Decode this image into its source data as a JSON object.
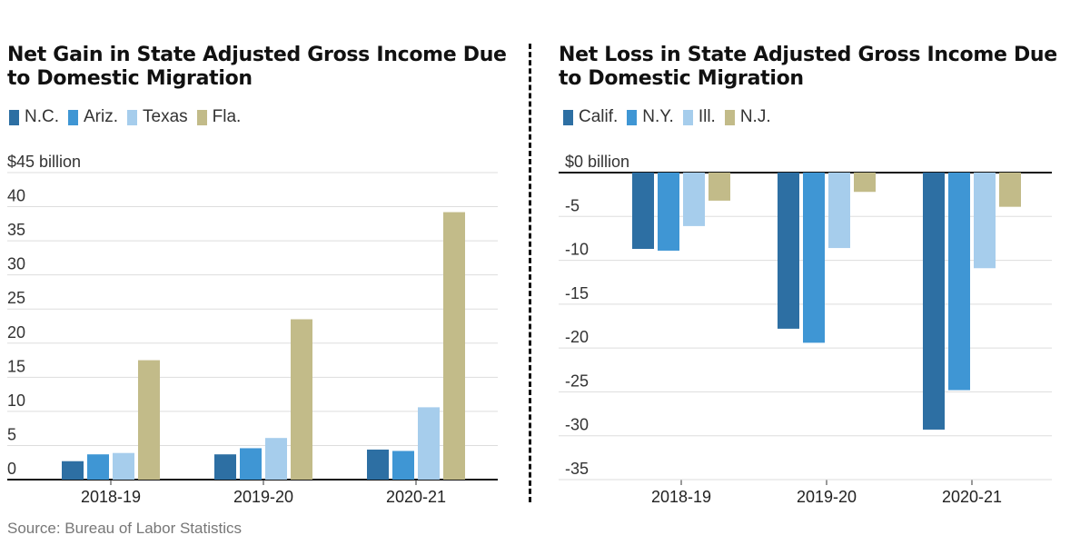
{
  "chart_data": [
    {
      "type": "bar",
      "title": "Net Gain in State Adjusted Gross Income Due to Domestic Migration",
      "title_lines": [
        "Net Gain in State Adjusted Gross Income Due",
        "to Domestic Migration"
      ],
      "categories": [
        "2018-19",
        "2019-20",
        "2020-21"
      ],
      "series": [
        {
          "name": "N.C.",
          "color": "#2d6fa3",
          "values": [
            2.7,
            3.7,
            4.4
          ]
        },
        {
          "name": "Ariz.",
          "color": "#3f96d4",
          "values": [
            3.7,
            4.6,
            4.2
          ]
        },
        {
          "name": "Texas",
          "color": "#a6cdec",
          "values": [
            3.9,
            6.1,
            10.6
          ]
        },
        {
          "name": "Fla.",
          "color": "#c2bb89",
          "values": [
            17.5,
            23.5,
            39.2
          ]
        }
      ],
      "ylim": [
        0,
        45
      ],
      "yticks": [
        0,
        5,
        10,
        15,
        20,
        25,
        30,
        35,
        40,
        45
      ],
      "ytick_labels": [
        "0",
        "5",
        "10",
        "15",
        "20",
        "25",
        "30",
        "35",
        "40",
        "$45 billion"
      ],
      "xlabel": "",
      "ylabel": ""
    },
    {
      "type": "bar",
      "title": "Net Loss in State Adjusted Gross Income Due to Domestic Migration",
      "title_lines": [
        "Net Loss in State Adjusted Gross Income Due",
        "to Domestic Migration"
      ],
      "categories": [
        "2018-19",
        "2019-20",
        "2020-21"
      ],
      "series": [
        {
          "name": "Calif.",
          "color": "#2d6fa3",
          "values": [
            -8.7,
            -17.8,
            -29.3
          ]
        },
        {
          "name": "N.Y.",
          "color": "#3f96d4",
          "values": [
            -8.9,
            -19.4,
            -24.8
          ]
        },
        {
          "name": "Ill.",
          "color": "#a6cdec",
          "values": [
            -6.1,
            -8.6,
            -10.9
          ]
        },
        {
          "name": "N.J.",
          "color": "#c2bb89",
          "values": [
            -3.2,
            -2.2,
            -3.9
          ]
        }
      ],
      "ylim": [
        -35,
        0
      ],
      "yticks": [
        0,
        -5,
        -10,
        -15,
        -20,
        -25,
        -30,
        -35
      ],
      "ytick_labels": [
        "$0 billion",
        "-5",
        "-10",
        "-15",
        "-20",
        "-25",
        "-30",
        "-35"
      ],
      "xlabel": "",
      "ylabel": ""
    }
  ],
  "footer": {
    "source": "Source: Bureau of Labor Statistics"
  }
}
